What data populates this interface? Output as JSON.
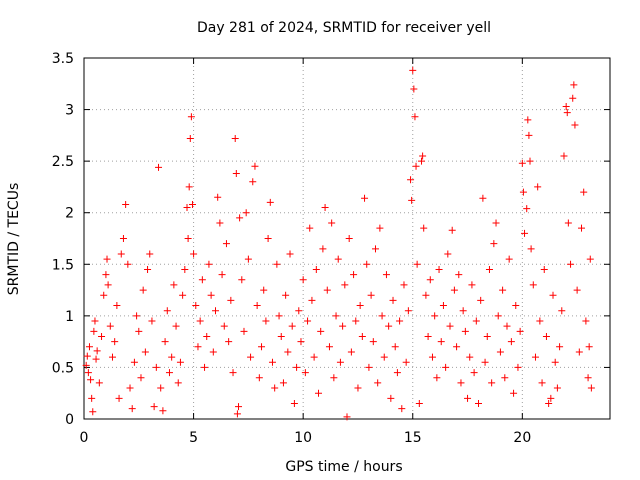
{
  "chart_data": {
    "type": "scatter",
    "title": "Day 281 of 2024, SRMTID for receiver yell",
    "xlabel": "GPS time / hours",
    "ylabel": "SRMTID / TECUs",
    "xlim": [
      0,
      24
    ],
    "ylim": [
      0,
      3.5
    ],
    "xticks": [
      0,
      5,
      10,
      15,
      20
    ],
    "xtick_labels": [
      "0",
      "5",
      "10",
      "15",
      "20"
    ],
    "yticks": [
      0,
      0.5,
      1,
      1.5,
      2,
      2.5,
      3,
      3.5
    ],
    "ytick_labels": [
      "0",
      "0.5",
      "1",
      "1.5",
      "2",
      "2.5",
      "3",
      "3.5"
    ],
    "grid": true,
    "marker": "+",
    "color": "#ff0000",
    "series": [
      {
        "name": "SRMTID",
        "points": [
          [
            0.1,
            0.52
          ],
          [
            0.15,
            0.61
          ],
          [
            0.2,
            0.45
          ],
          [
            0.25,
            0.7
          ],
          [
            0.3,
            0.38
          ],
          [
            0.35,
            0.2
          ],
          [
            0.4,
            0.07
          ],
          [
            0.45,
            0.85
          ],
          [
            0.5,
            0.95
          ],
          [
            0.55,
            0.58
          ],
          [
            0.6,
            0.66
          ],
          [
            0.7,
            0.35
          ],
          [
            0.8,
            0.8
          ],
          [
            0.9,
            1.2
          ],
          [
            1.0,
            1.4
          ],
          [
            1.05,
            1.55
          ],
          [
            1.1,
            1.3
          ],
          [
            1.2,
            0.9
          ],
          [
            1.3,
            0.6
          ],
          [
            1.4,
            0.75
          ],
          [
            1.5,
            1.1
          ],
          [
            1.6,
            0.2
          ],
          [
            1.7,
            1.6
          ],
          [
            1.8,
            1.75
          ],
          [
            1.9,
            2.08
          ],
          [
            2.0,
            1.5
          ],
          [
            2.1,
            0.3
          ],
          [
            2.2,
            0.1
          ],
          [
            2.3,
            0.55
          ],
          [
            2.4,
            1.0
          ],
          [
            2.5,
            0.85
          ],
          [
            2.6,
            0.4
          ],
          [
            2.7,
            1.25
          ],
          [
            2.8,
            0.65
          ],
          [
            2.9,
            1.45
          ],
          [
            3.0,
            1.6
          ],
          [
            3.1,
            0.95
          ],
          [
            3.2,
            0.12
          ],
          [
            3.3,
            0.5
          ],
          [
            3.4,
            2.44
          ],
          [
            3.5,
            0.3
          ],
          [
            3.6,
            0.08
          ],
          [
            3.7,
            0.75
          ],
          [
            3.8,
            1.05
          ],
          [
            3.9,
            0.45
          ],
          [
            4.0,
            0.6
          ],
          [
            4.1,
            1.3
          ],
          [
            4.2,
            0.9
          ],
          [
            4.3,
            0.35
          ],
          [
            4.4,
            0.55
          ],
          [
            4.5,
            1.2
          ],
          [
            4.6,
            1.45
          ],
          [
            4.7,
            2.05
          ],
          [
            4.75,
            1.75
          ],
          [
            4.8,
            2.25
          ],
          [
            4.85,
            2.72
          ],
          [
            4.9,
            2.93
          ],
          [
            4.95,
            2.08
          ],
          [
            5.0,
            1.6
          ],
          [
            5.1,
            1.1
          ],
          [
            5.2,
            0.7
          ],
          [
            5.3,
            0.95
          ],
          [
            5.4,
            1.35
          ],
          [
            5.5,
            0.5
          ],
          [
            5.6,
            0.8
          ],
          [
            5.7,
            1.5
          ],
          [
            5.8,
            1.2
          ],
          [
            5.9,
            0.65
          ],
          [
            6.0,
            1.05
          ],
          [
            6.1,
            2.15
          ],
          [
            6.2,
            1.9
          ],
          [
            6.3,
            1.4
          ],
          [
            6.4,
            0.9
          ],
          [
            6.5,
            1.7
          ],
          [
            6.6,
            0.75
          ],
          [
            6.7,
            1.15
          ],
          [
            6.8,
            0.45
          ],
          [
            6.9,
            2.72
          ],
          [
            6.95,
            2.38
          ],
          [
            7.0,
            0.05
          ],
          [
            7.05,
            0.12
          ],
          [
            7.1,
            1.95
          ],
          [
            7.2,
            1.35
          ],
          [
            7.3,
            0.85
          ],
          [
            7.4,
            2.0
          ],
          [
            7.5,
            1.55
          ],
          [
            7.6,
            0.6
          ],
          [
            7.7,
            2.3
          ],
          [
            7.8,
            2.45
          ],
          [
            7.9,
            1.1
          ],
          [
            8.0,
            0.4
          ],
          [
            8.1,
            0.7
          ],
          [
            8.2,
            1.25
          ],
          [
            8.3,
            0.95
          ],
          [
            8.4,
            1.75
          ],
          [
            8.5,
            2.1
          ],
          [
            8.6,
            0.55
          ],
          [
            8.7,
            0.3
          ],
          [
            8.8,
            1.5
          ],
          [
            8.9,
            1.0
          ],
          [
            9.0,
            0.8
          ],
          [
            9.1,
            0.35
          ],
          [
            9.2,
            1.2
          ],
          [
            9.3,
            0.65
          ],
          [
            9.4,
            1.6
          ],
          [
            9.5,
            0.9
          ],
          [
            9.6,
            0.15
          ],
          [
            9.7,
            0.5
          ],
          [
            9.8,
            1.05
          ],
          [
            9.9,
            0.75
          ],
          [
            10.0,
            1.35
          ],
          [
            10.1,
            0.45
          ],
          [
            10.2,
            0.95
          ],
          [
            10.3,
            1.85
          ],
          [
            10.4,
            1.15
          ],
          [
            10.5,
            0.6
          ],
          [
            10.6,
            1.45
          ],
          [
            10.7,
            0.25
          ],
          [
            10.8,
            0.85
          ],
          [
            10.9,
            1.65
          ],
          [
            11.0,
            2.05
          ],
          [
            11.1,
            1.25
          ],
          [
            11.2,
            0.7
          ],
          [
            11.3,
            1.9
          ],
          [
            11.4,
            0.4
          ],
          [
            11.5,
            1.0
          ],
          [
            11.6,
            1.55
          ],
          [
            11.7,
            0.55
          ],
          [
            11.8,
            0.9
          ],
          [
            11.9,
            1.3
          ],
          [
            12.0,
            0.02
          ],
          [
            12.1,
            1.75
          ],
          [
            12.2,
            0.65
          ],
          [
            12.3,
            1.4
          ],
          [
            12.4,
            0.95
          ],
          [
            12.5,
            0.3
          ],
          [
            12.6,
            1.1
          ],
          [
            12.7,
            0.8
          ],
          [
            12.8,
            2.14
          ],
          [
            12.9,
            1.5
          ],
          [
            13.0,
            0.5
          ],
          [
            13.1,
            1.2
          ],
          [
            13.2,
            0.75
          ],
          [
            13.3,
            1.65
          ],
          [
            13.4,
            0.35
          ],
          [
            13.5,
            1.85
          ],
          [
            13.6,
            1.0
          ],
          [
            13.7,
            0.6
          ],
          [
            13.8,
            1.4
          ],
          [
            13.9,
            0.9
          ],
          [
            14.0,
            0.2
          ],
          [
            14.1,
            1.15
          ],
          [
            14.2,
            0.7
          ],
          [
            14.3,
            0.45
          ],
          [
            14.4,
            0.95
          ],
          [
            14.5,
            0.1
          ],
          [
            14.6,
            1.3
          ],
          [
            14.7,
            0.55
          ],
          [
            14.8,
            1.05
          ],
          [
            14.9,
            2.32
          ],
          [
            14.95,
            2.12
          ],
          [
            15.0,
            3.38
          ],
          [
            15.05,
            3.2
          ],
          [
            15.1,
            2.93
          ],
          [
            15.15,
            2.45
          ],
          [
            15.2,
            1.5
          ],
          [
            15.3,
            0.15
          ],
          [
            15.4,
            2.5
          ],
          [
            15.45,
            2.55
          ],
          [
            15.5,
            1.85
          ],
          [
            15.6,
            1.2
          ],
          [
            15.7,
            0.8
          ],
          [
            15.8,
            1.35
          ],
          [
            15.9,
            0.6
          ],
          [
            16.0,
            1.0
          ],
          [
            16.1,
            0.4
          ],
          [
            16.2,
            1.45
          ],
          [
            16.3,
            0.75
          ],
          [
            16.4,
            1.1
          ],
          [
            16.5,
            0.5
          ],
          [
            16.6,
            1.6
          ],
          [
            16.7,
            0.9
          ],
          [
            16.8,
            1.83
          ],
          [
            16.9,
            1.25
          ],
          [
            17.0,
            0.7
          ],
          [
            17.1,
            1.4
          ],
          [
            17.2,
            0.35
          ],
          [
            17.3,
            1.05
          ],
          [
            17.4,
            0.85
          ],
          [
            17.5,
            0.2
          ],
          [
            17.6,
            0.6
          ],
          [
            17.7,
            1.3
          ],
          [
            17.8,
            0.45
          ],
          [
            17.9,
            0.95
          ],
          [
            18.0,
            0.15
          ],
          [
            18.1,
            1.15
          ],
          [
            18.2,
            2.14
          ],
          [
            18.3,
            0.55
          ],
          [
            18.4,
            0.8
          ],
          [
            18.5,
            1.45
          ],
          [
            18.6,
            0.35
          ],
          [
            18.7,
            1.7
          ],
          [
            18.8,
            1.9
          ],
          [
            18.9,
            1.0
          ],
          [
            19.0,
            0.65
          ],
          [
            19.1,
            1.25
          ],
          [
            19.2,
            0.4
          ],
          [
            19.3,
            0.9
          ],
          [
            19.4,
            1.55
          ],
          [
            19.5,
            0.75
          ],
          [
            19.6,
            0.25
          ],
          [
            19.7,
            1.1
          ],
          [
            19.8,
            0.5
          ],
          [
            19.9,
            0.85
          ],
          [
            20.0,
            2.48
          ],
          [
            20.05,
            2.2
          ],
          [
            20.1,
            1.8
          ],
          [
            20.2,
            2.04
          ],
          [
            20.25,
            2.9
          ],
          [
            20.3,
            2.75
          ],
          [
            20.35,
            2.5
          ],
          [
            20.4,
            1.65
          ],
          [
            20.5,
            1.3
          ],
          [
            20.6,
            0.6
          ],
          [
            20.7,
            2.25
          ],
          [
            20.8,
            0.95
          ],
          [
            20.9,
            0.35
          ],
          [
            21.0,
            1.45
          ],
          [
            21.1,
            0.8
          ],
          [
            21.2,
            0.15
          ],
          [
            21.3,
            0.2
          ],
          [
            21.4,
            1.2
          ],
          [
            21.5,
            0.55
          ],
          [
            21.6,
            0.3
          ],
          [
            21.7,
            0.7
          ],
          [
            21.8,
            1.05
          ],
          [
            21.9,
            2.55
          ],
          [
            22.0,
            3.03
          ],
          [
            22.05,
            2.97
          ],
          [
            22.1,
            1.9
          ],
          [
            22.2,
            1.5
          ],
          [
            22.3,
            3.11
          ],
          [
            22.35,
            3.24
          ],
          [
            22.4,
            2.85
          ],
          [
            22.5,
            1.25
          ],
          [
            22.6,
            0.65
          ],
          [
            22.7,
            1.85
          ],
          [
            22.8,
            2.2
          ],
          [
            22.9,
            0.95
          ],
          [
            23.0,
            0.4
          ],
          [
            23.05,
            0.7
          ],
          [
            23.1,
            1.55
          ],
          [
            23.15,
            0.3
          ]
        ]
      }
    ]
  }
}
